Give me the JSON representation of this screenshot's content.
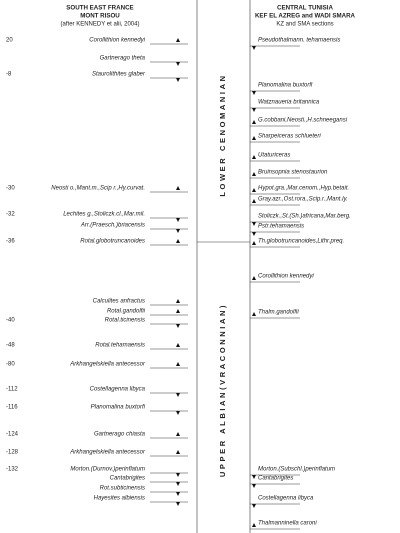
{
  "left_header": {
    "region": "SOUTH EAST FRANCE",
    "site": "MONT RISOU",
    "source": "(after KENNEDY et alii, 2004)"
  },
  "right_header": {
    "region": "CENTRAL TUNISIA",
    "site": "KEF EL AZREG  and WADI SMARA",
    "source": "KZ and SMA sections"
  },
  "stages": [
    "LOWER CENOMANIAN",
    "UPPER ALBIAN(VRACONNIAN)"
  ],
  "left_events": [
    {
      "depth": 20,
      "name": "Corollithion kennedyi"
    },
    {
      "name": "Gartnerago theta"
    },
    {
      "depth": -8,
      "name": "Staurolithites glaber"
    },
    {
      "depth": -30,
      "name": "Neosti o.,Mant.m.,Scip r.,Hy.curvat."
    },
    {
      "depth": -32,
      "name": "Lechites g.,Stoliczk.cl.,Mar.mil."
    },
    {
      "name": "Arr.(Praesch.)briacensis"
    },
    {
      "depth": -36,
      "name": "Rotal.globotruncanoides"
    },
    {
      "name": "Calculites anfractus"
    },
    {
      "name": "Rotal.gandolfii"
    },
    {
      "depth": -40,
      "name": "Rotal.ticinensis"
    },
    {
      "depth": -48,
      "name": "Rotal.tehamaensis"
    },
    {
      "depth": -80,
      "name": "Arkhangelskiella antecessor"
    },
    {
      "depth": -112,
      "name": "Costellagenna libyca"
    },
    {
      "depth": -116,
      "name": "Planomalina buxtorfi"
    },
    {
      "depth": -124,
      "name": "Gartnerago chiasta"
    },
    {
      "depth": -128,
      "name": "Arkhangelskiella antecessor"
    },
    {
      "depth": -132,
      "name": "Morton.(Durnov.)perinflatum"
    },
    {
      "name": "Cantabrigites"
    },
    {
      "name": "Rot.subticinensis"
    },
    {
      "name": "Hayesites albiensis"
    }
  ],
  "right_events": [
    "Pseudothalmann. tehamaensis",
    "Planomalina buxtorfi",
    "Watznaueria britannica",
    "G.cobbani,Neosti.,H.schneegansi",
    "Sharpeiceras schlueteri",
    "Utaturiceras",
    "Bruinsopnia  stenostaurion",
    "Hypot.gra.,Mar.cenom.,Hyp.betait.",
    "Gray.azr.,Ost.rora.,Scip.r.,Mant.ly.",
    "Stoliczk.,St.(Sh.)africana,Mar.berg.",
    "Pstr.tehamaensis",
    "Th.globotruncanoides,Lithr.preq.",
    "Corollithion kennedyi",
    "Thalm.gandolfii",
    "Morton.(Subschl.)perinflatum",
    "Cantabrigites",
    "Costellagenna libyca",
    "Thalmanninella caroni"
  ]
}
